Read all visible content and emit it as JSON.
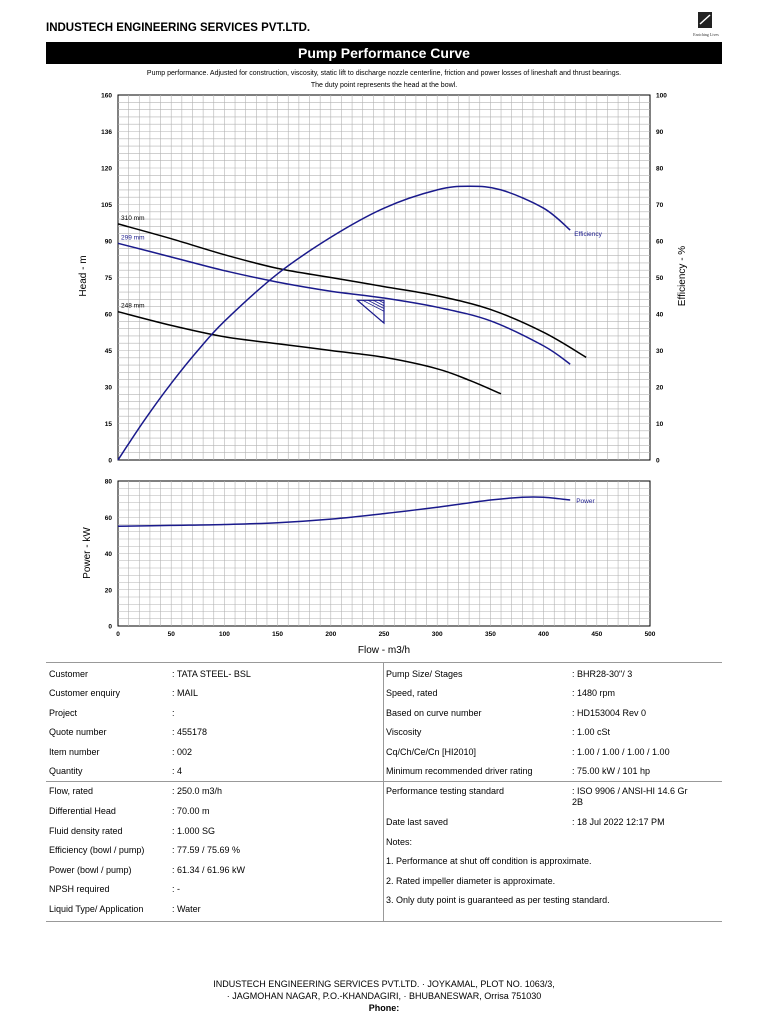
{
  "header": {
    "company": "INDUSTECH ENGINEERING SERVICES PVT.LTD.",
    "logo_caption": "Enriching Lives",
    "title": "Pump Performance Curve"
  },
  "chart_data": {
    "type": "line",
    "notes": [
      "Pump performance. Adjusted for construction, viscosity, static lift to discharge nozzle centerline, friction and power losses of lineshaft and thrust bearings.",
      "The duty point represents the head at the bowl."
    ],
    "xlabel": "Flow - m3/h",
    "xlim": [
      0,
      500
    ],
    "x_ticks": [
      "0",
      "50",
      "100",
      "150",
      "200",
      "250",
      "300",
      "350",
      "400",
      "450",
      "500"
    ],
    "head_chart": {
      "ylabel": "Head - m",
      "ylim": [
        0,
        160
      ],
      "y_ticks": [
        "0",
        "15",
        "30",
        "45",
        "60",
        "75",
        "90",
        "105",
        "120",
        "136",
        "160"
      ],
      "y2label": "Efficiency - %",
      "y2lim": [
        0,
        100
      ],
      "y2_ticks": [
        "0",
        "10",
        "20",
        "30",
        "40",
        "50",
        "60",
        "70",
        "80",
        "90",
        "100"
      ],
      "series": [
        {
          "name": "310 mm",
          "color": "#000000",
          "x": [
            0,
            50,
            100,
            150,
            200,
            250,
            300,
            350,
            400,
            440
          ],
          "y": [
            103.5,
            97,
            90,
            84,
            80,
            76,
            72,
            66,
            56,
            45
          ]
        },
        {
          "name": "299 mm",
          "color": "#1a1a8c",
          "x": [
            0,
            50,
            100,
            150,
            200,
            250,
            300,
            350,
            400,
            425
          ],
          "y": [
            95,
            89,
            83,
            78,
            74,
            71,
            67,
            61,
            50,
            42
          ]
        },
        {
          "name": "248 mm",
          "color": "#000000",
          "x": [
            0,
            50,
            100,
            150,
            200,
            250,
            300,
            330,
            360
          ],
          "y": [
            65,
            59,
            54,
            51,
            48,
            45,
            40,
            35,
            29
          ]
        },
        {
          "name": "Efficiency",
          "color": "#1a1a8c",
          "x": [
            0,
            25,
            50,
            75,
            100,
            150,
            200,
            250,
            300,
            330,
            360,
            400,
            425
          ],
          "y2": [
            0,
            11,
            21,
            30,
            38,
            51,
            61,
            69,
            74,
            75,
            74,
            69,
            63
          ]
        }
      ],
      "duty_point": {
        "flow": 250,
        "head": 70
      }
    },
    "power_chart": {
      "ylabel": "Power - kW",
      "ylim": [
        0,
        80
      ],
      "y_ticks": [
        "0",
        "20",
        "40",
        "60",
        "80"
      ],
      "series": [
        {
          "name": "Power",
          "color": "#1a1a8c",
          "x": [
            0,
            50,
            100,
            150,
            200,
            250,
            300,
            350,
            380,
            400,
            425
          ],
          "y": [
            55,
            55.5,
            56,
            57,
            59,
            62,
            65.5,
            69.5,
            71,
            71,
            69.5
          ]
        }
      ]
    }
  },
  "info": {
    "left": [
      {
        "label": "Customer",
        "value": ": TATA STEEL- BSL"
      },
      {
        "label": "Customer enquiry",
        "value": ": MAIL"
      },
      {
        "label": "Project",
        "value": ":"
      },
      {
        "label": "Quote number",
        "value": ": 455178"
      },
      {
        "label": "Item number",
        "value": ": 002"
      },
      {
        "label": "Quantity",
        "value": ": 4"
      },
      {
        "label": "Flow, rated",
        "value": ": 250.0 m3/h"
      },
      {
        "label": "Differential Head",
        "value": ": 70.00 m"
      },
      {
        "label": "Fluid density rated",
        "value": ": 1.000 SG"
      },
      {
        "label": "Efficiency (bowl / pump)",
        "value": ": 77.59 / 75.69 %"
      },
      {
        "label": "Power (bowl / pump)",
        "value": ": 61.34 / 61.96 kW"
      },
      {
        "label": "NPSH required",
        "value": ": -"
      },
      {
        "label": "Liquid Type/ Application",
        "value": ": Water"
      }
    ],
    "right": [
      {
        "label": "Pump Size/ Stages",
        "value": ": BHR28-30\"/ 3"
      },
      {
        "label": "Speed, rated",
        "value": ": 1480 rpm"
      },
      {
        "label": "Based on curve number",
        "value": ": HD153004 Rev 0"
      },
      {
        "label": "Viscosity",
        "value": ": 1.00 cSt"
      },
      {
        "label": "Cq/Ch/Ce/Cn  [HI2010]",
        "value": ": 1.00 / 1.00 / 1.00 / 1.00"
      },
      {
        "label": "Minimum recommended driver rating",
        "value": ": 75.00 kW / 101 hp"
      },
      {
        "label": "Performance testing standard",
        "value": ": ISO 9906 / ANSI-HI 14.6 Gr"
      },
      {
        "label": "",
        "value": "2B"
      },
      {
        "label": "Date last saved",
        "value": ": 18 Jul 2022 12:17 PM"
      },
      {
        "label": "Notes:",
        "value": ""
      },
      {
        "label": "1. Performance at shut off condition is approximate.",
        "value": ""
      },
      {
        "label": "2. Rated impeller diameter is approximate.",
        "value": ""
      },
      {
        "label": "3. Only duty point is guaranteed as per testing standard.",
        "value": ""
      }
    ]
  },
  "footer": {
    "line1": "INDUSTECH ENGINEERING SERVICES PVT.LTD. · JOYKAMAL, PLOT NO. 1063/3,",
    "line2": "· JAGMOHAN NAGAR, P.O.-KHANDAGIRI, · BHUBANESWAR, Orrisa 751030",
    "line3": "Phone:"
  }
}
